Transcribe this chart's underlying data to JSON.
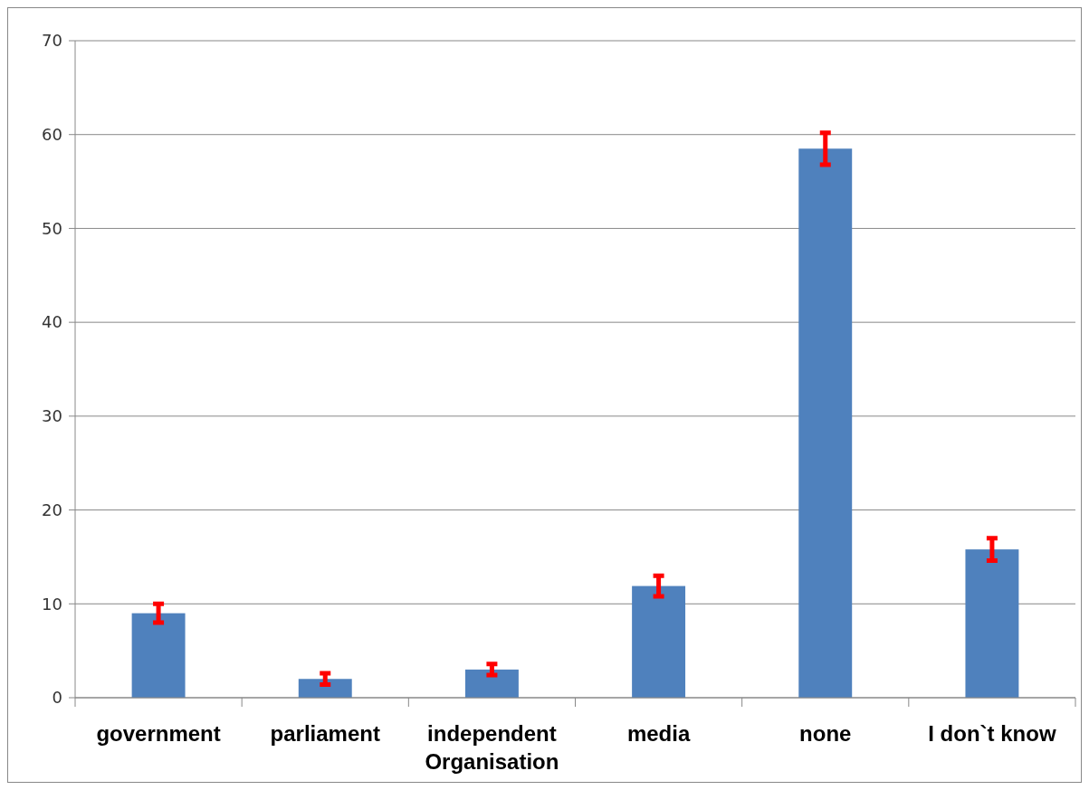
{
  "chart_data": {
    "type": "bar",
    "categories": [
      "government",
      "parliament",
      "independent Organisation",
      "media",
      "none",
      "I don`t know"
    ],
    "values": [
      9,
      2,
      3,
      11.9,
      58.5,
      15.8
    ],
    "errors": [
      1,
      0.6,
      0.6,
      1.1,
      1.7,
      1.2
    ],
    "color": "#4f81bd",
    "ylim": [
      0,
      70
    ],
    "yticks": [
      0,
      10,
      20,
      30,
      40,
      50,
      60,
      70
    ],
    "grid": "y"
  }
}
